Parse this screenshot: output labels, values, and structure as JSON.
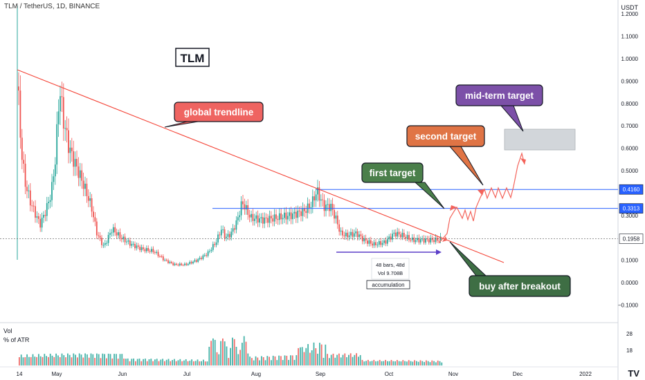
{
  "header": {
    "symbol_line": "TLM / TetherUS, 1D, BINANCE"
  },
  "price_axis": {
    "currency": "USDT",
    "ticks": [
      "1.2000",
      "1.1000",
      "1.0000",
      "0.9000",
      "0.8000",
      "0.7000",
      "0.6000",
      "0.5000",
      "0.3000",
      "0.1000",
      "0.0000",
      "−0.1000"
    ],
    "badges": {
      "upper": "0.4160",
      "middle": "0.3313",
      "last": "0.1958"
    }
  },
  "time_axis": {
    "ticks": [
      "14",
      "May",
      "Jun",
      "Jul",
      "Aug",
      "Sep",
      "Oct",
      "Nov",
      "Dec",
      "2022"
    ]
  },
  "volume": {
    "label": "Vol",
    "sublabel": "% of ATR",
    "ticks": [
      "28",
      "18"
    ]
  },
  "annotations": {
    "title_box": "TLM",
    "trendline": "global trendline",
    "first_target": "first target",
    "second_target": "second target",
    "mid_target": "mid-term target",
    "buy": "buy after breakout",
    "measure_bars": "48 bars, 48d",
    "measure_vol": "Vol 9.708B",
    "accumulation": "accumulation"
  },
  "colors": {
    "bull": "#26a69a",
    "bear": "#ef5350",
    "trendline": "#f44336",
    "level_line": "#2962ff",
    "trendline_label": "#ef6461",
    "first_label": "#4a7f4a",
    "second_label": "#e07445",
    "mid_label": "#7c50a8",
    "buy_label": "#3e6e44",
    "projection": "#f4635a",
    "target_zone": "#c7ccd1"
  },
  "chart_data": {
    "type": "candlestick",
    "symbol": "TLM / TetherUS",
    "interval": "1D",
    "exchange": "BINANCE",
    "last_price": 0.1958,
    "horizontal_levels": [
      0.416,
      0.3313
    ],
    "target_zone": [
      0.6,
      0.68
    ],
    "key_closes": [
      {
        "date": "Apr 14",
        "value": 0.94
      },
      {
        "date": "May 03",
        "value": 0.87
      },
      {
        "date": "Jun 05",
        "value": 0.19
      },
      {
        "date": "Jul 01",
        "value": 0.08
      },
      {
        "date": "Jul 25",
        "value": 0.3
      },
      {
        "date": "Aug 31",
        "value": 0.41
      },
      {
        "date": "Sep 10",
        "value": 0.25
      },
      {
        "date": "Oct 01",
        "value": 0.16
      },
      {
        "date": "Oct 27",
        "value": 0.19
      }
    ],
    "ylim": [
      -0.12,
      1.25
    ]
  }
}
